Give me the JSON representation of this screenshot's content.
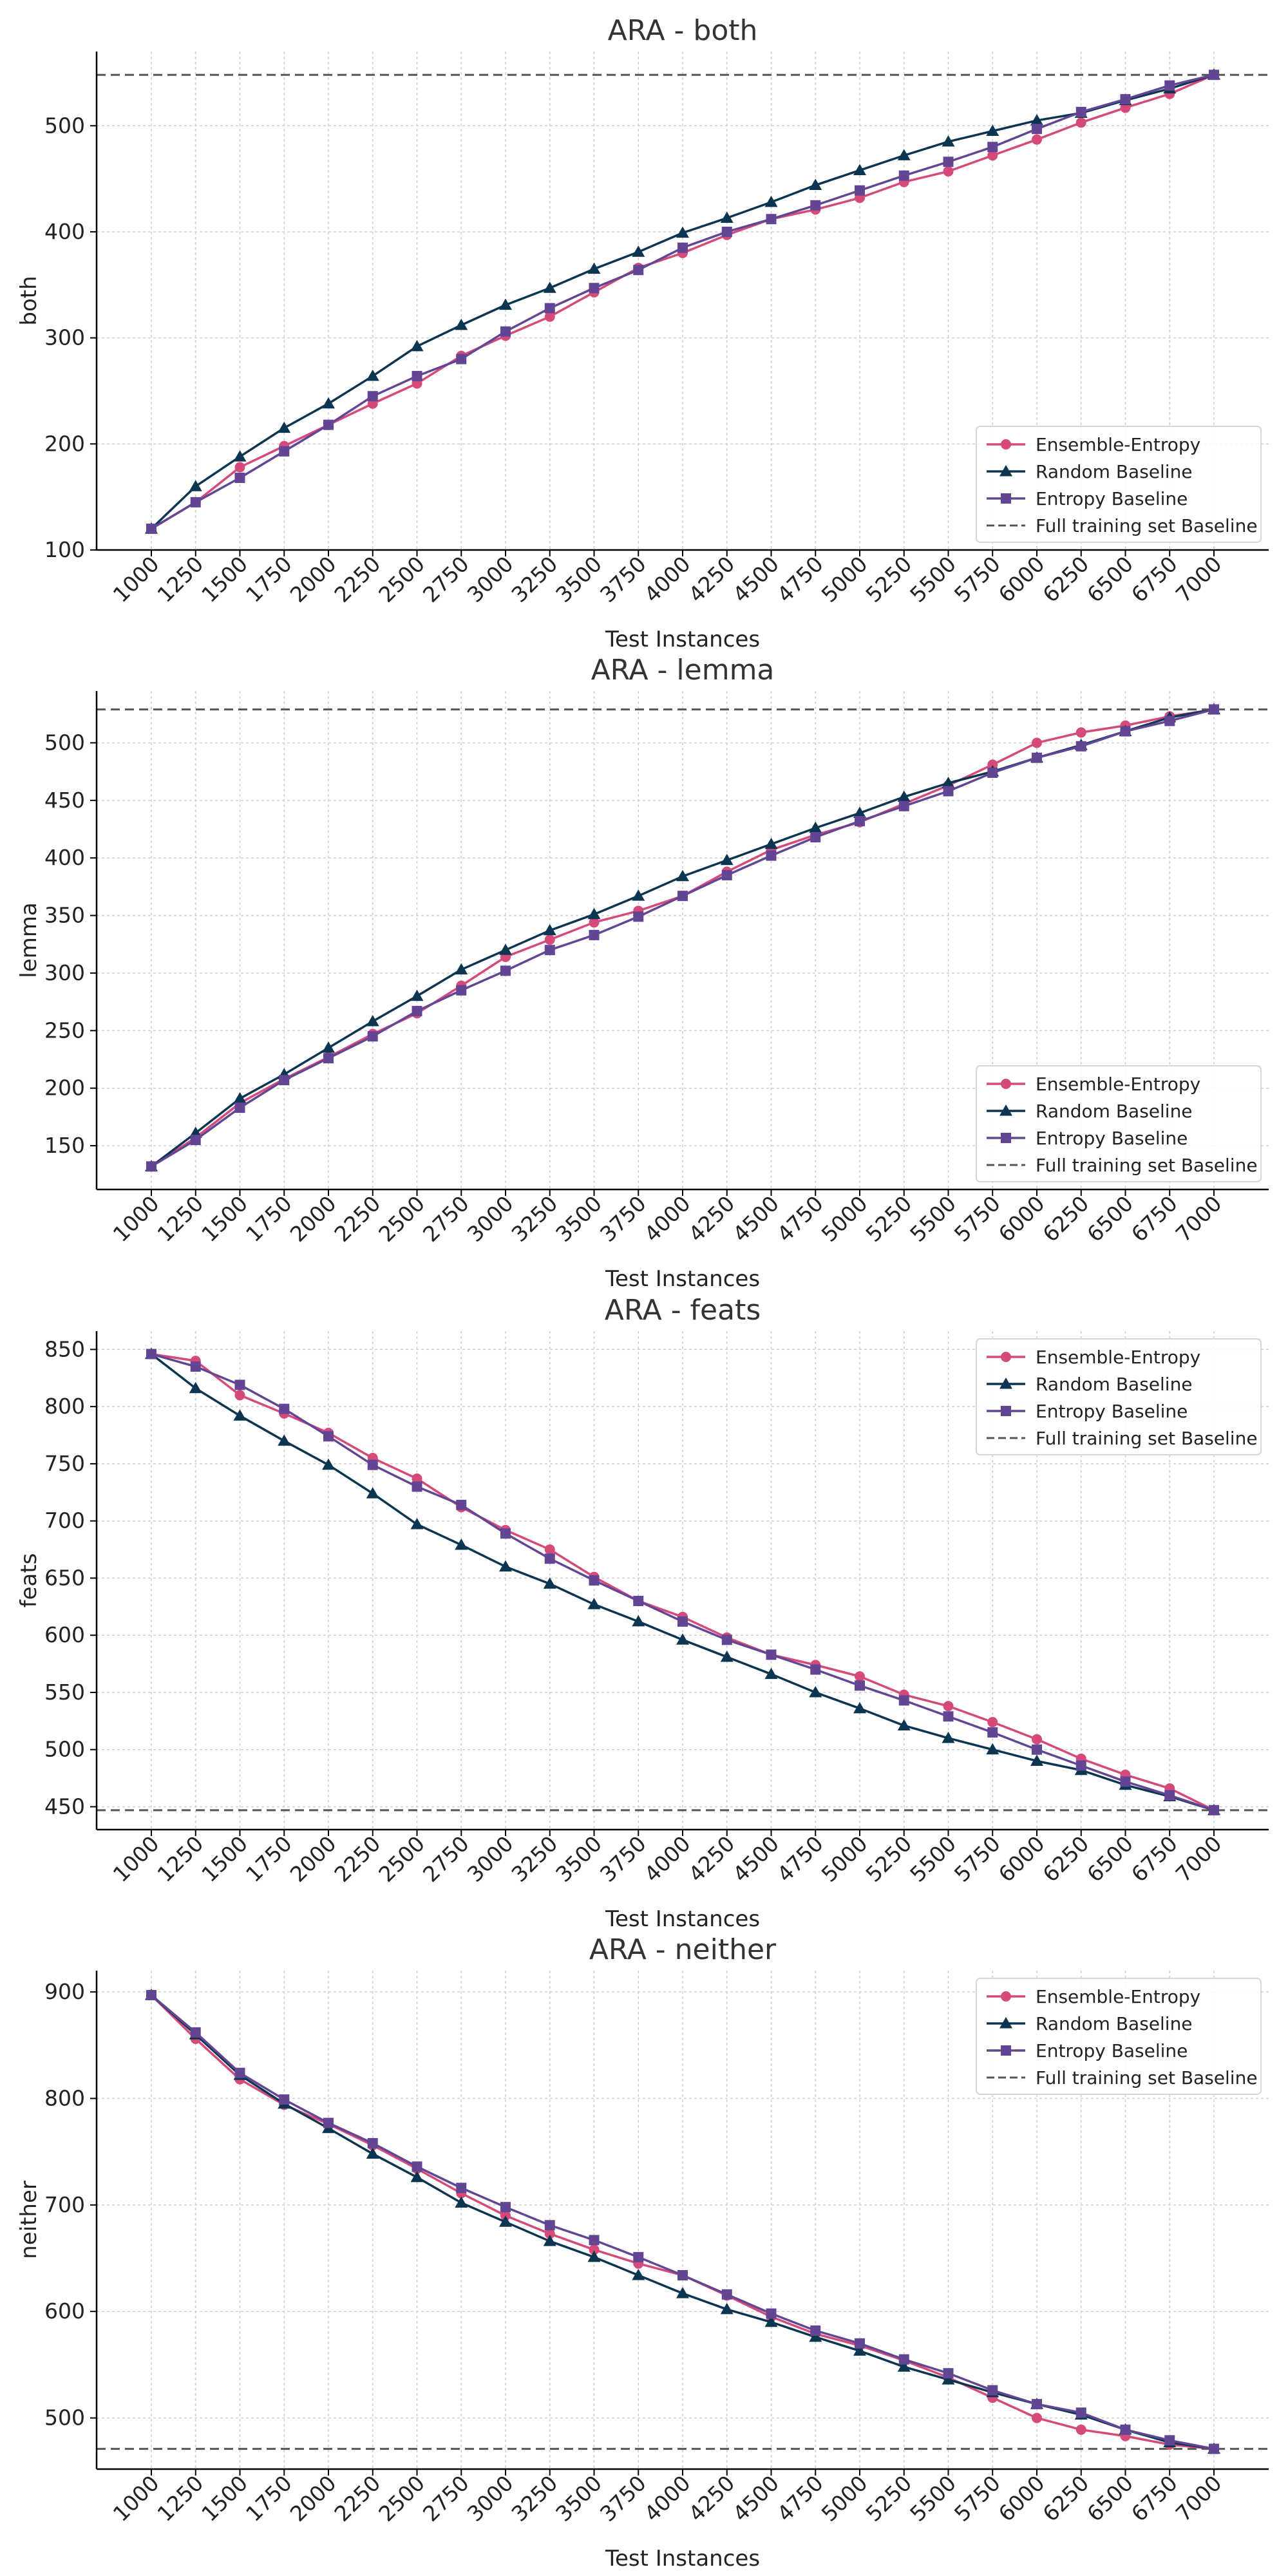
{
  "colors": {
    "ensemble": "#d6497b",
    "random": "#0b3551",
    "entropy": "#624693",
    "baseline": "#555555"
  },
  "chart_data": [
    {
      "type": "line",
      "title": "ARA - both",
      "xlabel": "Test Instances",
      "ylabel": "both",
      "x": [
        1000,
        1250,
        1500,
        1750,
        2000,
        2250,
        2500,
        2750,
        3000,
        3250,
        3500,
        3750,
        4000,
        4250,
        4500,
        4750,
        5000,
        5250,
        5500,
        5750,
        6000,
        6250,
        6500,
        6750,
        7000
      ],
      "ylim": [
        100,
        570
      ],
      "yticks": [
        100,
        200,
        300,
        400,
        500
      ],
      "legend_position": "lower-right",
      "baseline": {
        "name": "Full training set Baseline",
        "value": 548
      },
      "series": [
        {
          "name": "Ensemble-Entropy",
          "color_key": "ensemble",
          "marker": "circle",
          "values": [
            120,
            145,
            178,
            198,
            218,
            238,
            257,
            283,
            302,
            320,
            343,
            366,
            380,
            397,
            412,
            421,
            432,
            447,
            457,
            472,
            487,
            503,
            517,
            530,
            548
          ]
        },
        {
          "name": "Random Baseline",
          "color_key": "random",
          "marker": "triangle",
          "values": [
            120,
            160,
            188,
            215,
            238,
            264,
            292,
            312,
            331,
            347,
            365,
            381,
            399,
            413,
            428,
            444,
            458,
            472,
            485,
            495,
            505,
            512,
            524,
            535,
            548
          ]
        },
        {
          "name": "Entropy Baseline",
          "color_key": "entropy",
          "marker": "square",
          "values": [
            120,
            145,
            168,
            193,
            218,
            245,
            264,
            280,
            306,
            328,
            347,
            364,
            385,
            400,
            412,
            425,
            439,
            453,
            466,
            480,
            497,
            513,
            525,
            538,
            548
          ]
        }
      ]
    },
    {
      "type": "line",
      "title": "ARA - lemma",
      "xlabel": "Test Instances",
      "ylabel": "lemma",
      "x": [
        1000,
        1250,
        1500,
        1750,
        2000,
        2250,
        2500,
        2750,
        3000,
        3250,
        3500,
        3750,
        4000,
        4250,
        4500,
        4750,
        5000,
        5250,
        5500,
        5750,
        6000,
        6250,
        6500,
        6750,
        7000
      ],
      "ylim": [
        112,
        545
      ],
      "yticks": [
        150,
        200,
        250,
        300,
        350,
        400,
        450,
        500
      ],
      "legend_position": "lower-right",
      "baseline": {
        "name": "Full training set Baseline",
        "value": 529
      },
      "series": [
        {
          "name": "Ensemble-Entropy",
          "color_key": "ensemble",
          "marker": "circle",
          "values": [
            132,
            157,
            187,
            208,
            227,
            247,
            265,
            289,
            314,
            329,
            344,
            354,
            367,
            388,
            407,
            420,
            431,
            447,
            463,
            481,
            500,
            509,
            515,
            523,
            529
          ]
        },
        {
          "name": "Random Baseline",
          "color_key": "random",
          "marker": "triangle",
          "values": [
            132,
            161,
            191,
            212,
            235,
            258,
            280,
            303,
            320,
            337,
            351,
            367,
            384,
            398,
            412,
            426,
            439,
            453,
            465,
            475,
            487,
            498,
            510,
            522,
            529
          ]
        },
        {
          "name": "Entropy Baseline",
          "color_key": "entropy",
          "marker": "square",
          "values": [
            132,
            155,
            183,
            207,
            226,
            245,
            267,
            285,
            302,
            320,
            333,
            349,
            367,
            385,
            402,
            418,
            432,
            445,
            458,
            474,
            487,
            497,
            510,
            519,
            529
          ]
        }
      ]
    },
    {
      "type": "line",
      "title": "ARA - feats",
      "xlabel": "Test Instances",
      "ylabel": "feats",
      "x": [
        1000,
        1250,
        1500,
        1750,
        2000,
        2250,
        2500,
        2750,
        3000,
        3250,
        3500,
        3750,
        4000,
        4250,
        4500,
        4750,
        5000,
        5250,
        5500,
        5750,
        6000,
        6250,
        6500,
        6750,
        7000
      ],
      "ylim": [
        430,
        866
      ],
      "yticks": [
        450,
        500,
        550,
        600,
        650,
        700,
        750,
        800,
        850
      ],
      "legend_position": "upper-right",
      "baseline": {
        "name": "Full training set Baseline",
        "value": 447
      },
      "series": [
        {
          "name": "Ensemble-Entropy",
          "color_key": "ensemble",
          "marker": "circle",
          "values": [
            846,
            840,
            810,
            794,
            777,
            755,
            737,
            712,
            692,
            675,
            651,
            630,
            616,
            598,
            583,
            574,
            564,
            548,
            538,
            524,
            509,
            492,
            478,
            466,
            447
          ]
        },
        {
          "name": "Random Baseline",
          "color_key": "random",
          "marker": "triangle",
          "values": [
            846,
            816,
            792,
            770,
            749,
            724,
            697,
            679,
            660,
            645,
            627,
            612,
            596,
            581,
            566,
            550,
            536,
            521,
            510,
            500,
            490,
            482,
            469,
            459,
            447
          ]
        },
        {
          "name": "Entropy Baseline",
          "color_key": "entropy",
          "marker": "square",
          "values": [
            846,
            835,
            819,
            798,
            774,
            749,
            730,
            714,
            689,
            667,
            648,
            630,
            612,
            596,
            583,
            570,
            556,
            543,
            529,
            515,
            500,
            486,
            472,
            460,
            447
          ]
        }
      ]
    },
    {
      "type": "line",
      "title": "ARA - neither",
      "xlabel": "Test Instances",
      "ylabel": "neither",
      "x": [
        1000,
        1250,
        1500,
        1750,
        2000,
        2250,
        2500,
        2750,
        3000,
        3250,
        3500,
        3750,
        4000,
        4250,
        4500,
        4750,
        5000,
        5250,
        5500,
        5750,
        6000,
        6250,
        6500,
        6750,
        7000
      ],
      "ylim": [
        452,
        920
      ],
      "yticks": [
        500,
        600,
        700,
        800,
        900
      ],
      "legend_position": "upper-right",
      "baseline": {
        "name": "Full training set Baseline",
        "value": 471
      },
      "series": [
        {
          "name": "Ensemble-Entropy",
          "color_key": "ensemble",
          "marker": "circle",
          "values": [
            897,
            856,
            818,
            794,
            776,
            756,
            734,
            711,
            690,
            673,
            658,
            645,
            634,
            615,
            595,
            579,
            568,
            554,
            538,
            519,
            500,
            489,
            483,
            475,
            471
          ]
        },
        {
          "name": "Random Baseline",
          "color_key": "random",
          "marker": "triangle",
          "values": [
            897,
            860,
            822,
            795,
            772,
            748,
            726,
            702,
            684,
            666,
            651,
            634,
            617,
            602,
            590,
            576,
            563,
            548,
            536,
            524,
            513,
            503,
            489,
            477,
            471
          ]
        },
        {
          "name": "Entropy Baseline",
          "color_key": "entropy",
          "marker": "square",
          "values": [
            897,
            862,
            824,
            799,
            777,
            758,
            736,
            716,
            698,
            681,
            667,
            651,
            634,
            616,
            598,
            582,
            570,
            555,
            542,
            526,
            513,
            505,
            489,
            479,
            471
          ]
        }
      ]
    }
  ]
}
